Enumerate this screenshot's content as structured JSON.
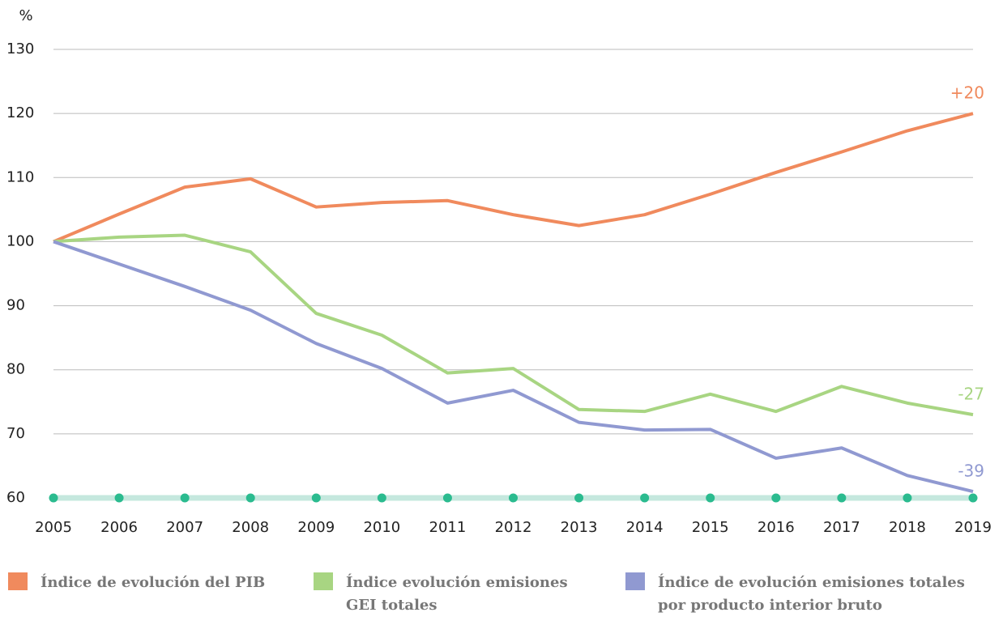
{
  "chart_data": {
    "type": "line",
    "y_label": "%",
    "categories": [
      "2005",
      "2006",
      "2007",
      "2008",
      "2009",
      "2010",
      "2011",
      "2012",
      "2013",
      "2014",
      "2015",
      "2016",
      "2017",
      "2018",
      "2019"
    ],
    "ylim": [
      60,
      130
    ],
    "yticks": [
      60,
      70,
      80,
      90,
      100,
      110,
      120,
      130
    ],
    "grid": true,
    "series": [
      {
        "name": "Índice de evolución del PIB",
        "color": "#f08a5d",
        "end_label": "+20",
        "values": [
          100,
          104.3,
          108.5,
          109.8,
          105.4,
          106.1,
          106.4,
          104.2,
          102.5,
          104.2,
          107.4,
          110.8,
          114,
          117.3,
          120
        ]
      },
      {
        "name": "Índice evolución emisiones GEI totales",
        "color": "#a8d582",
        "end_label": "-27",
        "values": [
          100,
          100.7,
          101,
          98.4,
          88.8,
          85.4,
          79.5,
          80.2,
          73.8,
          73.5,
          76.2,
          73.5,
          77.4,
          74.8,
          73
        ]
      },
      {
        "name": "Índice de evolución emisiones totales por producto interior bruto",
        "color": "#9099d1",
        "end_label": "-39",
        "values": [
          100,
          96.5,
          93,
          89.3,
          84.1,
          80.2,
          74.8,
          76.8,
          71.8,
          70.6,
          70.7,
          66.2,
          67.8,
          63.5,
          61
        ]
      }
    ]
  }
}
